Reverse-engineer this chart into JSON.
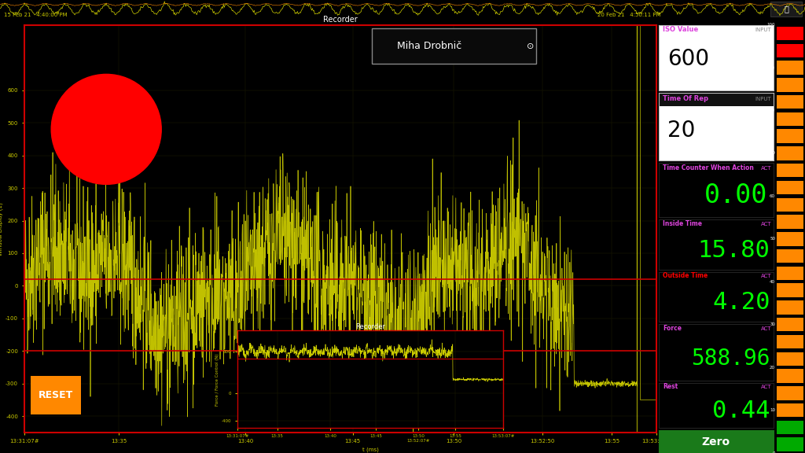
{
  "bg_color": "#000000",
  "yellow_line_color": "#cccc00",
  "red_line_color": "#cc0000",
  "orange_color": "#ff8800",
  "green_color": "#00ff00",
  "green_btn_color": "#1a7a1a",
  "white_color": "#ffffff",
  "title_recorder": "Recorder",
  "athlete_name": "Miha Drobnič",
  "iso_value_label": "ISO Value",
  "iso_value": "600",
  "input_label": "INPUT",
  "time_of_rep_label": "Time Of Rep",
  "time_of_rep": "20",
  "time_counter_label": "Time Counter When Action",
  "time_counter_val": "0.00",
  "inside_time_label": "Inside Time",
  "inside_time_val": "15.80",
  "outside_time_label": "Outside Time",
  "outside_time_val": "4.20",
  "force_label": "Force",
  "force_val": "588.96",
  "rest_label": "Rest",
  "rest_val": "0.44",
  "act_label": "ACT",
  "zero_btn_label": "Zero",
  "reset_btn_label": "RESET",
  "mini_recorder_label": "Recorder",
  "mini_x_label": "t (ms)"
}
